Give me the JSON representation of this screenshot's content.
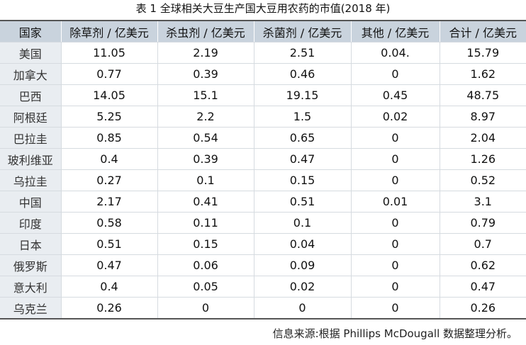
{
  "title": "表 1 全球相关大豆生产国大豆用农药的市值(2018 年)",
  "table": {
    "header": [
      "国家",
      "除草剂 / 亿美元",
      "杀虫剂 / 亿美元",
      "杀菌剂 / 亿美元",
      "其他 / 亿美元",
      "合计 / 亿美元"
    ],
    "rows": [
      [
        "美国",
        "11.05",
        "2.19",
        "2.51",
        "0.04.",
        "15.79"
      ],
      [
        "加拿大",
        "0.77",
        "0.39",
        "0.46",
        "0",
        "1.62"
      ],
      [
        "巴西",
        "14.05",
        "15.1",
        "19.15",
        "0.45",
        "48.75"
      ],
      [
        "阿根廷",
        "5.25",
        "2.2",
        "1.5",
        "0.02",
        "8.97"
      ],
      [
        "巴拉圭",
        "0.85",
        "0.54",
        "0.65",
        "0",
        "2.04"
      ],
      [
        "玻利维亚",
        "0.4",
        "0.39",
        "0.47",
        "0",
        "1.26"
      ],
      [
        "乌拉圭",
        "0.27",
        "0.1",
        "0.15",
        "0",
        "0.52"
      ],
      [
        "中国",
        "2.17",
        "0.41",
        "0.51",
        "0.01",
        "3.1"
      ],
      [
        "印度",
        "0.58",
        "0.11",
        "0.1",
        "0",
        "0.79"
      ],
      [
        "日本",
        "0.51",
        "0.15",
        "0.04",
        "0",
        "0.7"
      ],
      [
        "俄罗斯",
        "0.47",
        "0.06",
        "0.09",
        "0",
        "0.62"
      ],
      [
        "意大利",
        "0.4",
        "0.05",
        "0.02",
        "0",
        "0.47"
      ],
      [
        "乌克兰",
        "0.26",
        "0",
        "0",
        "0",
        "0.26"
      ]
    ]
  },
  "source": "信息来源:根据 Phillips McDougall 数据整理分析。"
}
